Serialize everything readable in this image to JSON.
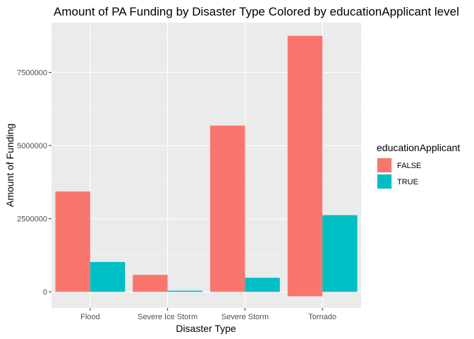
{
  "chart_data": {
    "type": "bar",
    "title": "Amount of PA Funding by Disaster Type Colored by educationApplicant level",
    "xlabel": "Disaster Type",
    "ylabel": "Amount of Funding",
    "categories": [
      "Flood",
      "Severe Ice Storm",
      "Severe Storm",
      "Tornado"
    ],
    "series": [
      {
        "name": "FALSE",
        "color": "#F8766D",
        "values": [
          3430000,
          580000,
          5680000,
          8750000
        ],
        "baseline_min": [
          0,
          0,
          0,
          -150000
        ]
      },
      {
        "name": "TRUE",
        "color": "#00BFC4",
        "values": [
          1020000,
          40000,
          480000,
          2620000
        ],
        "baseline_min": [
          0,
          0,
          0,
          0
        ]
      }
    ],
    "yticks": [
      0,
      2500000,
      5000000,
      7500000
    ],
    "ytick_labels": [
      "0",
      "2500000",
      "5000000",
      "7500000"
    ],
    "ylim": [
      -550000,
      9200000
    ],
    "legend": {
      "title": "educationApplicant",
      "position": "right"
    },
    "grid": true,
    "background": "#EBEBEB"
  }
}
